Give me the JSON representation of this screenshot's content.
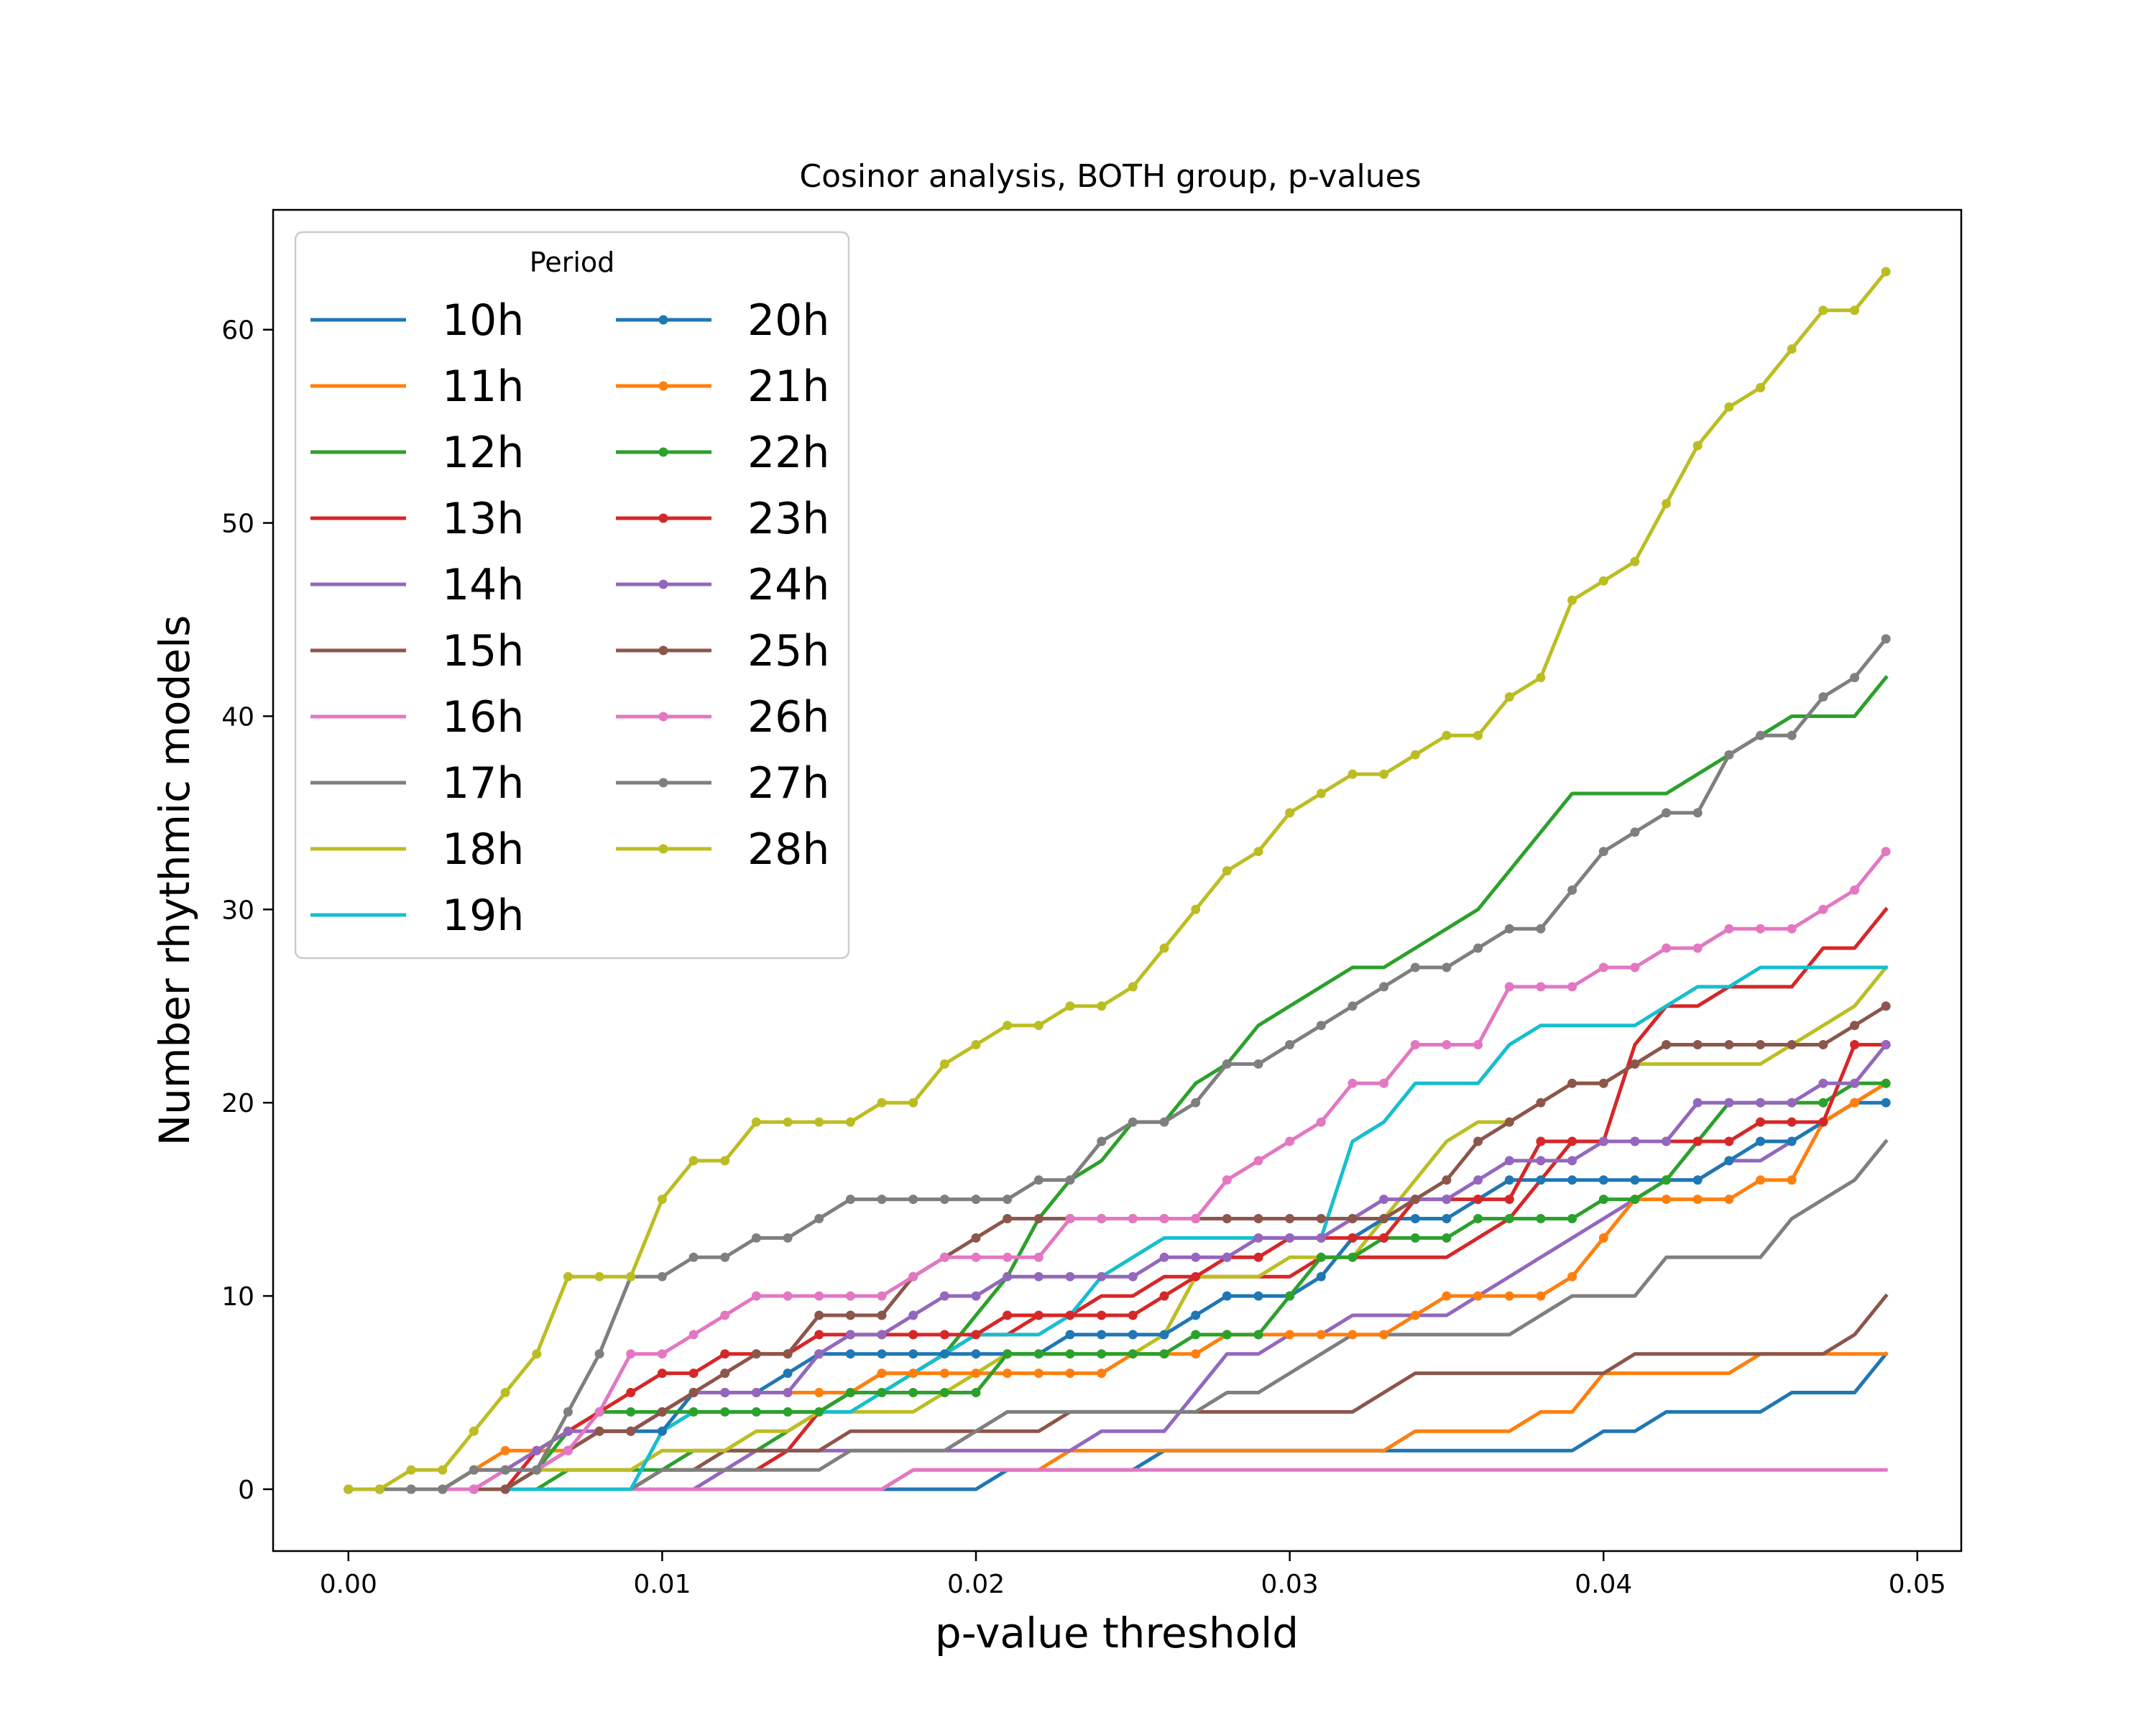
{
  "chart_data": {
    "type": "line",
    "title": "Cosinor analysis, BOTH group, p-values",
    "xlabel": "p-value threshold",
    "ylabel": "Number rhythmic models",
    "xlim": [
      -0.0024,
      0.0514
    ],
    "ylim": [
      -3.2,
      66.2
    ],
    "xticks": [
      "0.00",
      "0.01",
      "0.02",
      "0.03",
      "0.04",
      "0.05"
    ],
    "xtick_values": [
      0,
      0.01,
      0.02,
      0.03,
      0.04,
      0.05
    ],
    "yticks": [
      "0",
      "10",
      "20",
      "30",
      "40",
      "50",
      "60"
    ],
    "ytick_values": [
      0,
      10,
      20,
      30,
      40,
      50,
      60
    ],
    "grid": false,
    "legend": {
      "title": "Period",
      "position": "top-left",
      "columns": 2
    },
    "x": [
      0,
      0.001,
      0.002,
      0.003,
      0.004,
      0.005,
      0.006,
      0.007,
      0.008,
      0.009,
      0.01,
      0.011,
      0.012,
      0.013,
      0.014,
      0.015,
      0.016,
      0.017,
      0.018,
      0.019,
      0.02,
      0.021,
      0.022,
      0.023,
      0.024,
      0.025,
      0.026,
      0.027,
      0.028,
      0.029,
      0.03,
      0.031,
      0.032,
      0.033,
      0.034,
      0.035,
      0.036,
      0.037,
      0.038,
      0.039,
      0.04,
      0.041,
      0.042,
      0.043,
      0.044,
      0.045,
      0.046,
      0.047,
      0.048,
      0.049
    ],
    "series": [
      {
        "name": "10h",
        "color": "#1f77b4",
        "marker": false,
        "values": [
          0,
          0,
          0,
          0,
          0,
          0,
          0,
          0,
          0,
          0,
          0,
          0,
          0,
          0,
          0,
          0,
          0,
          0,
          0,
          0,
          0,
          1,
          1,
          1,
          1,
          1,
          2,
          2,
          2,
          2,
          2,
          2,
          2,
          2,
          2,
          2,
          2,
          2,
          2,
          2,
          3,
          3,
          4,
          4,
          4,
          4,
          5,
          5,
          5,
          7
        ]
      },
      {
        "name": "11h",
        "color": "#ff7f0e",
        "marker": false,
        "values": [
          0,
          0,
          0,
          0,
          0,
          0,
          0,
          0,
          0,
          0,
          0,
          0,
          0,
          0,
          0,
          0,
          0,
          0,
          1,
          1,
          1,
          1,
          1,
          2,
          2,
          2,
          2,
          2,
          2,
          2,
          2,
          2,
          2,
          2,
          3,
          3,
          3,
          3,
          4,
          4,
          6,
          6,
          6,
          6,
          6,
          7,
          7,
          7,
          7,
          7
        ]
      },
      {
        "name": "12h",
        "color": "#2ca02c",
        "marker": false,
        "values": [
          0,
          0,
          0,
          0,
          0,
          0,
          0,
          1,
          1,
          1,
          1,
          2,
          2,
          2,
          3,
          4,
          5,
          6,
          6,
          7,
          9,
          11,
          14,
          16,
          17,
          19,
          19,
          21,
          22,
          24,
          25,
          26,
          27,
          27,
          28,
          29,
          30,
          32,
          34,
          36,
          36,
          36,
          36,
          37,
          38,
          39,
          40,
          40,
          40,
          42
        ]
      },
      {
        "name": "13h",
        "color": "#d62728",
        "marker": false,
        "values": [
          0,
          0,
          0,
          0,
          0,
          0,
          0,
          0,
          0,
          0,
          1,
          1,
          1,
          1,
          2,
          4,
          5,
          5,
          6,
          7,
          8,
          8,
          9,
          9,
          10,
          10,
          11,
          11,
          11,
          11,
          11,
          12,
          12,
          12,
          12,
          12,
          13,
          14,
          16,
          18,
          18,
          23,
          25,
          25,
          26,
          26,
          26,
          28,
          28,
          30
        ]
      },
      {
        "name": "14h",
        "color": "#9467bd",
        "marker": false,
        "values": [
          0,
          0,
          0,
          0,
          0,
          0,
          0,
          0,
          0,
          0,
          0,
          0,
          1,
          2,
          2,
          2,
          2,
          2,
          2,
          2,
          2,
          2,
          2,
          2,
          3,
          3,
          3,
          5,
          7,
          7,
          8,
          8,
          9,
          9,
          9,
          9,
          10,
          11,
          12,
          13,
          14,
          15,
          16,
          16,
          17,
          17,
          18,
          19,
          20,
          21
        ]
      },
      {
        "name": "15h",
        "color": "#8c564b",
        "marker": false,
        "values": [
          0,
          0,
          0,
          0,
          0,
          0,
          0,
          0,
          0,
          0,
          1,
          1,
          2,
          2,
          2,
          2,
          3,
          3,
          3,
          3,
          3,
          3,
          3,
          4,
          4,
          4,
          4,
          4,
          4,
          4,
          4,
          4,
          4,
          5,
          6,
          6,
          6,
          6,
          6,
          6,
          6,
          7,
          7,
          7,
          7,
          7,
          7,
          7,
          8,
          10
        ]
      },
      {
        "name": "16h",
        "color": "#e377c2",
        "marker": false,
        "values": [
          0,
          0,
          0,
          0,
          0,
          0,
          0,
          0,
          0,
          0,
          0,
          0,
          0,
          0,
          0,
          0,
          0,
          0,
          1,
          1,
          1,
          1,
          1,
          1,
          1,
          1,
          1,
          1,
          1,
          1,
          1,
          1,
          1,
          1,
          1,
          1,
          1,
          1,
          1,
          1,
          1,
          1,
          1,
          1,
          1,
          1,
          1,
          1,
          1,
          1
        ]
      },
      {
        "name": "17h",
        "color": "#7f7f7f",
        "marker": false,
        "values": [
          0,
          0,
          0,
          0,
          0,
          0,
          0,
          0,
          0,
          0,
          1,
          1,
          1,
          1,
          1,
          1,
          2,
          2,
          2,
          2,
          3,
          4,
          4,
          4,
          4,
          4,
          4,
          4,
          5,
          5,
          6,
          7,
          8,
          8,
          8,
          8,
          8,
          8,
          9,
          10,
          10,
          10,
          12,
          12,
          12,
          12,
          14,
          15,
          16,
          18
        ]
      },
      {
        "name": "18h",
        "color": "#bcbd22",
        "marker": false,
        "values": [
          0,
          0,
          0,
          0,
          1,
          1,
          1,
          1,
          1,
          1,
          2,
          2,
          2,
          3,
          3,
          4,
          4,
          4,
          4,
          5,
          6,
          7,
          7,
          7,
          7,
          7,
          8,
          11,
          11,
          11,
          12,
          12,
          12,
          14,
          16,
          18,
          19,
          19,
          20,
          21,
          21,
          22,
          22,
          22,
          22,
          22,
          23,
          24,
          25,
          27
        ]
      },
      {
        "name": "19h",
        "color": "#17becf",
        "marker": false,
        "values": [
          0,
          0,
          0,
          0,
          0,
          0,
          0,
          0,
          0,
          0,
          3,
          4,
          4,
          4,
          4,
          4,
          4,
          5,
          6,
          7,
          8,
          8,
          8,
          9,
          11,
          12,
          13,
          13,
          13,
          13,
          13,
          13,
          18,
          19,
          21,
          21,
          21,
          23,
          24,
          24,
          24,
          24,
          25,
          26,
          26,
          27,
          27,
          27,
          27,
          27
        ]
      },
      {
        "name": "20h",
        "color": "#1f77b4",
        "marker": true,
        "values": [
          0,
          0,
          0,
          0,
          1,
          1,
          1,
          2,
          3,
          3,
          3,
          5,
          5,
          5,
          6,
          7,
          7,
          7,
          7,
          7,
          7,
          7,
          7,
          8,
          8,
          8,
          8,
          9,
          10,
          10,
          10,
          11,
          13,
          14,
          14,
          14,
          15,
          16,
          16,
          16,
          16,
          16,
          16,
          16,
          17,
          18,
          18,
          19,
          20,
          20
        ]
      },
      {
        "name": "21h",
        "color": "#ff7f0e",
        "marker": true,
        "values": [
          0,
          0,
          0,
          0,
          1,
          2,
          2,
          2,
          3,
          3,
          4,
          5,
          5,
          5,
          5,
          5,
          5,
          6,
          6,
          6,
          6,
          6,
          6,
          6,
          6,
          7,
          7,
          7,
          8,
          8,
          8,
          8,
          8,
          8,
          9,
          10,
          10,
          10,
          10,
          11,
          13,
          15,
          15,
          15,
          15,
          16,
          16,
          19,
          20,
          21
        ]
      },
      {
        "name": "22h",
        "color": "#2ca02c",
        "marker": true,
        "values": [
          0,
          0,
          0,
          0,
          0,
          0,
          1,
          3,
          4,
          4,
          4,
          4,
          4,
          4,
          4,
          4,
          5,
          5,
          5,
          5,
          5,
          7,
          7,
          7,
          7,
          7,
          7,
          8,
          8,
          8,
          10,
          12,
          12,
          13,
          13,
          13,
          14,
          14,
          14,
          14,
          15,
          15,
          16,
          18,
          20,
          20,
          20,
          20,
          21,
          21
        ]
      },
      {
        "name": "23h",
        "color": "#d62728",
        "marker": true,
        "values": [
          0,
          0,
          0,
          0,
          0,
          0,
          2,
          3,
          4,
          5,
          6,
          6,
          7,
          7,
          7,
          8,
          8,
          8,
          8,
          8,
          8,
          9,
          9,
          9,
          9,
          9,
          10,
          11,
          12,
          12,
          13,
          13,
          13,
          13,
          15,
          15,
          15,
          15,
          18,
          18,
          18,
          18,
          18,
          18,
          18,
          19,
          19,
          19,
          23,
          23
        ]
      },
      {
        "name": "24h",
        "color": "#9467bd",
        "marker": true,
        "values": [
          0,
          0,
          0,
          0,
          0,
          1,
          2,
          3,
          3,
          3,
          4,
          5,
          5,
          5,
          5,
          7,
          8,
          8,
          9,
          10,
          10,
          11,
          11,
          11,
          11,
          11,
          12,
          12,
          12,
          13,
          13,
          13,
          14,
          15,
          15,
          15,
          16,
          17,
          17,
          17,
          18,
          18,
          18,
          20,
          20,
          20,
          20,
          21,
          21,
          23
        ]
      },
      {
        "name": "25h",
        "color": "#8c564b",
        "marker": true,
        "values": [
          0,
          0,
          0,
          0,
          0,
          0,
          1,
          2,
          3,
          3,
          4,
          5,
          6,
          7,
          7,
          9,
          9,
          9,
          11,
          12,
          13,
          14,
          14,
          14,
          14,
          14,
          14,
          14,
          14,
          14,
          14,
          14,
          14,
          14,
          15,
          16,
          18,
          19,
          20,
          21,
          21,
          22,
          23,
          23,
          23,
          23,
          23,
          23,
          24,
          25
        ]
      },
      {
        "name": "26h",
        "color": "#e377c2",
        "marker": true,
        "values": [
          0,
          0,
          0,
          0,
          0,
          1,
          1,
          2,
          4,
          7,
          7,
          8,
          9,
          10,
          10,
          10,
          10,
          10,
          11,
          12,
          12,
          12,
          12,
          14,
          14,
          14,
          14,
          14,
          16,
          17,
          18,
          19,
          21,
          21,
          23,
          23,
          23,
          26,
          26,
          26,
          27,
          27,
          28,
          28,
          29,
          29,
          29,
          30,
          31,
          33
        ]
      },
      {
        "name": "27h",
        "color": "#7f7f7f",
        "marker": true,
        "values": [
          0,
          0,
          0,
          0,
          1,
          1,
          1,
          4,
          7,
          11,
          11,
          12,
          12,
          13,
          13,
          14,
          15,
          15,
          15,
          15,
          15,
          15,
          16,
          16,
          18,
          19,
          19,
          20,
          22,
          22,
          23,
          24,
          25,
          26,
          27,
          27,
          28,
          29,
          29,
          31,
          33,
          34,
          35,
          35,
          38,
          39,
          39,
          41,
          42,
          44
        ]
      },
      {
        "name": "28h",
        "color": "#bcbd22",
        "marker": true,
        "values": [
          0,
          0,
          1,
          1,
          3,
          5,
          7,
          11,
          11,
          11,
          15,
          17,
          17,
          19,
          19,
          19,
          19,
          20,
          20,
          22,
          23,
          24,
          24,
          25,
          25,
          26,
          28,
          30,
          32,
          33,
          35,
          36,
          37,
          37,
          38,
          39,
          39,
          41,
          42,
          46,
          47,
          48,
          51,
          54,
          56,
          57,
          59,
          61,
          61,
          63
        ]
      }
    ]
  }
}
